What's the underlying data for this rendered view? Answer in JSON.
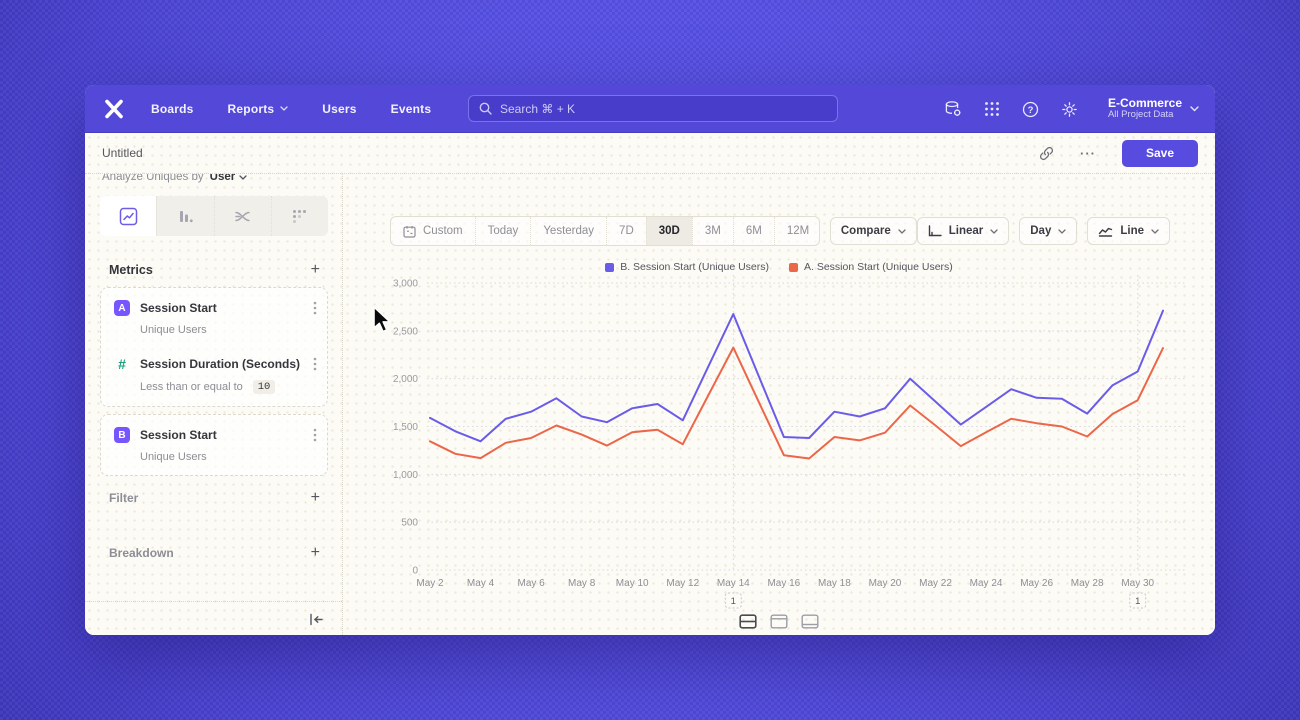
{
  "navbar": {
    "menu": [
      {
        "label": "Boards",
        "chevron": false
      },
      {
        "label": "Reports",
        "chevron": true
      },
      {
        "label": "Users",
        "chevron": false
      },
      {
        "label": "Events",
        "chevron": false
      }
    ],
    "search_placeholder": "Search  ⌘ + K",
    "project": {
      "name": "E-Commerce",
      "subtitle": "All Project Data"
    }
  },
  "titlebar": {
    "title": "Untitled",
    "save_label": "Save",
    "more_label": "···"
  },
  "sidebar": {
    "analyze_prefix": "Analyze Uniques by",
    "analyze_value": "User",
    "metrics_header": "Metrics",
    "add_label": "+",
    "metric_groups": [
      {
        "items": [
          {
            "badge": "A",
            "badge_style": "letter",
            "name": "Session Start",
            "detail": "Unique Users",
            "detail_value": null
          },
          {
            "badge": "#",
            "badge_style": "hash",
            "name": "Session Duration (Seconds)",
            "detail": "Less than or equal to",
            "detail_value": "10"
          }
        ]
      },
      {
        "items": [
          {
            "badge": "B",
            "badge_style": "letter",
            "name": "Session Start",
            "detail": "Unique Users",
            "detail_value": null
          }
        ]
      }
    ],
    "sections": [
      {
        "label": "Filter",
        "action": "+"
      },
      {
        "label": "Breakdown",
        "action": "+"
      }
    ]
  },
  "toolbar": {
    "ranges": [
      "Custom",
      "Today",
      "Yesterday",
      "7D",
      "30D",
      "3M",
      "6M",
      "12M"
    ],
    "active_range": "30D",
    "compare_label": "Compare",
    "scale_label": "Linear",
    "interval_label": "Day",
    "chart_type_label": "Line"
  },
  "chart_data": {
    "type": "line",
    "title": "",
    "x": [
      "May 2",
      "May 3",
      "May 4",
      "May 5",
      "May 6",
      "May 7",
      "May 8",
      "May 9",
      "May 10",
      "May 11",
      "May 12",
      "May 13",
      "May 14",
      "May 15",
      "May 16",
      "May 17",
      "May 18",
      "May 19",
      "May 20",
      "May 21",
      "May 22",
      "May 23",
      "May 24",
      "May 25",
      "May 26",
      "May 27",
      "May 28",
      "May 29",
      "May 30",
      "May 31"
    ],
    "x_label_every": 2,
    "series": [
      {
        "name": "B. Session Start (Unique Users)",
        "color": "#6a5ce8",
        "values": [
          1590,
          1450,
          1345,
          1580,
          1655,
          1795,
          1605,
          1545,
          1690,
          1735,
          1565,
          2120,
          2675,
          2030,
          1390,
          1380,
          1655,
          1605,
          1690,
          2000,
          1760,
          1520,
          1705,
          1890,
          1800,
          1790,
          1635,
          1930,
          2075,
          2710
        ]
      },
      {
        "name": "A. Session Start (Unique Users)",
        "color": "#ec6649",
        "values": [
          1345,
          1215,
          1170,
          1330,
          1380,
          1510,
          1415,
          1300,
          1440,
          1465,
          1315,
          1820,
          2325,
          1760,
          1200,
          1165,
          1390,
          1355,
          1435,
          1720,
          1510,
          1295,
          1440,
          1580,
          1535,
          1500,
          1395,
          1630,
          1775,
          2320
        ]
      }
    ],
    "ylim": [
      0,
      3000
    ],
    "yticks": [
      0,
      500,
      1000,
      1500,
      2000,
      2500,
      3000
    ],
    "grid": true,
    "legend_position": "top-center",
    "annotations": [
      {
        "x_index": 12,
        "x": "May 14",
        "label": "1"
      },
      {
        "x_index": 28,
        "x": "May 30",
        "label": "1"
      }
    ]
  }
}
